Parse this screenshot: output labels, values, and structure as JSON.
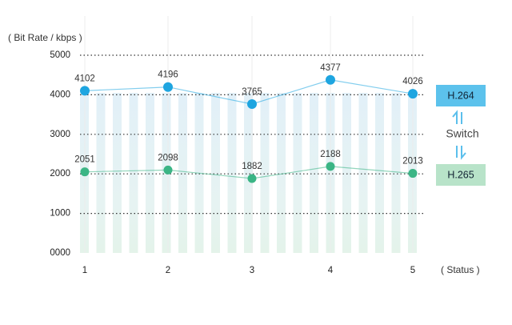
{
  "chart_data": {
    "type": "line",
    "y_label": "( Bit Rate / kbps )",
    "x_label": "( Status )",
    "categories": [
      "1",
      "2",
      "3",
      "4",
      "5"
    ],
    "series": [
      {
        "name": "H.264",
        "color": "#1ea5e0",
        "values": [
          4102,
          4196,
          3765,
          4377,
          4026
        ]
      },
      {
        "name": "H.265",
        "color": "#3bb585",
        "values": [
          2051,
          2098,
          1882,
          2188,
          2013
        ]
      }
    ],
    "ylim": [
      0,
      5000
    ],
    "yticks": [
      {
        "value": 0,
        "label": "0000"
      },
      1000,
      2000,
      3000,
      4000,
      5000
    ],
    "grid": true,
    "annotation": "Switch"
  }
}
